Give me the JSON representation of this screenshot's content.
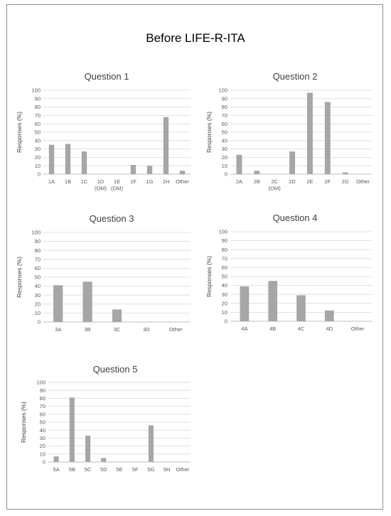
{
  "page_title": "Before LIFE-R-ITA",
  "colors": {
    "bar": "#a6a6a6",
    "grid": "#d9d9d9",
    "axis": "#bfbfbf",
    "frame": "#8c8c8c"
  },
  "chart_data": [
    {
      "type": "bar",
      "title": "Question 1",
      "ylabel": "Responses (%)",
      "ylim": [
        0,
        100
      ],
      "yticks": [
        0,
        10,
        20,
        30,
        40,
        50,
        60,
        70,
        80,
        90,
        100
      ],
      "grid": true,
      "categories": [
        "1A",
        "1B",
        "1C",
        "1D (OM)",
        "1E (OM)",
        "1F",
        "1G",
        "1H",
        "Other"
      ],
      "values": [
        35,
        36,
        27,
        0,
        0,
        11,
        10,
        68,
        4
      ]
    },
    {
      "type": "bar",
      "title": "Question 2",
      "ylabel": "Responses (%)",
      "ylim": [
        0,
        100
      ],
      "yticks": [
        0,
        10,
        20,
        30,
        40,
        50,
        60,
        70,
        80,
        90,
        100
      ],
      "grid": true,
      "categories": [
        "2A",
        "2B",
        "2C (OM)",
        "2D",
        "2E",
        "2F",
        "2G",
        "Other"
      ],
      "values": [
        23,
        4,
        0,
        27,
        97,
        86,
        2,
        0
      ]
    },
    {
      "type": "bar",
      "title": "Question 3",
      "ylabel": "Responses (%)",
      "ylim": [
        0,
        100
      ],
      "yticks": [
        0,
        10,
        20,
        30,
        40,
        50,
        60,
        70,
        80,
        90,
        100
      ],
      "grid": true,
      "categories": [
        "3A",
        "3B",
        "3C",
        "3D",
        "Other"
      ],
      "values": [
        41,
        45,
        14,
        0,
        0
      ]
    },
    {
      "type": "bar",
      "title": "Question 4",
      "ylabel": "Responses (%)",
      "ylim": [
        0,
        100
      ],
      "yticks": [
        0,
        10,
        20,
        30,
        40,
        50,
        60,
        70,
        80,
        90,
        100
      ],
      "grid": true,
      "categories": [
        "4A",
        "4B",
        "4C",
        "4D",
        "Other"
      ],
      "values": [
        39,
        45,
        29,
        12,
        0
      ]
    },
    {
      "type": "bar",
      "title": "Question 5",
      "ylabel": "Responses (%)",
      "ylim": [
        0,
        100
      ],
      "yticks": [
        0,
        10,
        20,
        30,
        40,
        50,
        60,
        70,
        80,
        90,
        100
      ],
      "grid": true,
      "categories": [
        "5A",
        "5B",
        "5C",
        "5D",
        "5E",
        "5F",
        "5G",
        "5H",
        "Other"
      ],
      "values": [
        7,
        81,
        33,
        5,
        0,
        0,
        46,
        0,
        0
      ]
    }
  ]
}
